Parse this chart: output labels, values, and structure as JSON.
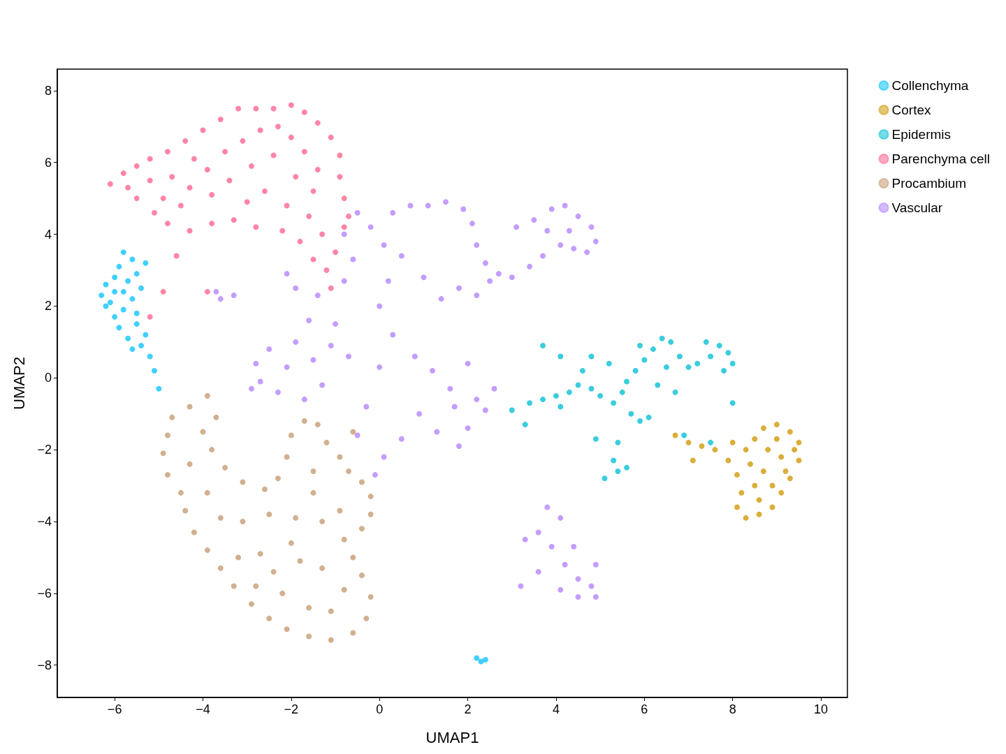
{
  "chart_data": {
    "type": "scatter",
    "xlabel": "UMAP1",
    "ylabel": "UMAP2",
    "xlim": [
      -7.3,
      10.6
    ],
    "ylim": [
      -8.9,
      8.6
    ],
    "xticks": [
      {
        "value": -6,
        "label": "−6"
      },
      {
        "value": -4,
        "label": "−4"
      },
      {
        "value": -2,
        "label": "−2"
      },
      0,
      2,
      4,
      6,
      8,
      10
    ],
    "yticks": [
      {
        "value": -8,
        "label": "−8"
      },
      {
        "value": -6,
        "label": "−6"
      },
      {
        "value": -4,
        "label": "−4"
      },
      {
        "value": -2,
        "label": "−2"
      },
      0,
      2,
      4,
      6,
      8
    ],
    "grid": false,
    "legend": "right",
    "marker": "circle",
    "series": [
      {
        "name": "Collenchyma",
        "color": "#1ec8ff",
        "x": [
          -6.3,
          -6.2,
          -6.1,
          -6,
          -5.9,
          -5.8,
          -5.6,
          -5.5,
          -5.4,
          -5.6,
          -5.8,
          -6,
          -5.9,
          -5.7,
          -5.6,
          -5.4,
          -5.3,
          -5.5,
          -5.2,
          -5.1,
          -5,
          -5.8,
          -6.2,
          -6,
          -5.5,
          -5.7,
          -5.3,
          2.3,
          2.4,
          2.2
        ],
        "values": [
          2.3,
          2.6,
          2.1,
          2.8,
          3.1,
          3.5,
          3.3,
          2.9,
          2.5,
          2.2,
          1.9,
          1.7,
          1.4,
          1.1,
          0.8,
          0.9,
          1.2,
          1.5,
          0.6,
          0.2,
          -0.3,
          2.4,
          2,
          2.4,
          1.8,
          2.7,
          3.2,
          -7.9,
          -7.85,
          -7.8
        ]
      },
      {
        "name": "Cortex",
        "color": "#d4a017",
        "x": [
          6.7,
          7,
          7.3,
          7.6,
          7.9,
          8.1,
          8.2,
          8.1,
          8.3,
          8.6,
          8.9,
          9.1,
          9.3,
          9.5,
          9.5,
          9.3,
          9,
          8.7,
          8.5,
          8.8,
          9.1,
          8.7,
          8.5,
          8.9,
          9.2,
          8.4,
          8.6,
          8,
          7.1,
          8.3,
          9.4,
          9
        ],
        "values": [
          -1.6,
          -1.8,
          -1.9,
          -2,
          -2.3,
          -2.7,
          -3.2,
          -3.6,
          -3.9,
          -3.8,
          -3.6,
          -3.2,
          -2.8,
          -2.3,
          -1.8,
          -1.5,
          -1.3,
          -1.4,
          -1.7,
          -2,
          -2.2,
          -2.6,
          -3,
          -3,
          -2.6,
          -2.4,
          -3.4,
          -1.8,
          -2.3,
          -2,
          -2,
          -1.7
        ]
      },
      {
        "name": "Epidermis",
        "color": "#18c4d8",
        "x": [
          3,
          3.4,
          3.7,
          4,
          4.3,
          4.1,
          4.5,
          4.8,
          5,
          5.3,
          5.5,
          5.7,
          5.9,
          6.1,
          5.6,
          5.8,
          6,
          6.2,
          6.4,
          6.6,
          6.8,
          7,
          7.2,
          7.5,
          7.7,
          7.9,
          8,
          7.8,
          6.5,
          6.3,
          5.4,
          5.3,
          5.4,
          5.1,
          5.6,
          4.9,
          4.6,
          4.8,
          3.7,
          4.1,
          5.2,
          6.9,
          7.5,
          3.3,
          5.9,
          7.4,
          8,
          6.7
        ],
        "values": [
          -0.9,
          -0.7,
          -0.6,
          -0.5,
          -0.4,
          -0.8,
          -0.2,
          -0.3,
          -0.5,
          -0.7,
          -0.4,
          -1,
          -1.2,
          -1.1,
          -0.1,
          0.2,
          0.5,
          0.8,
          1.1,
          1,
          0.6,
          0.3,
          0.4,
          0.6,
          0.9,
          0.7,
          0.4,
          0.2,
          0.3,
          -0.2,
          -1.8,
          -2.3,
          -2.6,
          -2.8,
          -2.5,
          -1.7,
          0.2,
          0.6,
          0.9,
          0.6,
          0.4,
          -1.6,
          -1.8,
          -1.3,
          0.9,
          1,
          -0.7,
          -0.4
        ]
      },
      {
        "name": "Parenchyma cell",
        "color": "#ff7096",
        "x": [
          -6.1,
          -5.8,
          -5.5,
          -5.2,
          -4.8,
          -4.4,
          -4,
          -3.6,
          -3.2,
          -2.8,
          -2.4,
          -2,
          -1.7,
          -1.4,
          -1.1,
          -0.9,
          -0.9,
          -0.8,
          -0.7,
          -0.8,
          -1,
          -1.2,
          -1.1,
          -1.5,
          -1.8,
          -2.2,
          -2.8,
          -3.3,
          -3.8,
          -4.3,
          -4.8,
          -5.1,
          -5.5,
          -5.7,
          -5.2,
          -4.7,
          -4.3,
          -3.9,
          -3.5,
          -3.1,
          -2.7,
          -2.3,
          -2,
          -1.7,
          -1.4,
          -1.5,
          -1.9,
          -2.4,
          -2.9,
          -3.4,
          -3.8,
          -4.5,
          -2.6,
          -2.1,
          -1.6,
          -3,
          -4.2,
          -4.9,
          -1.3,
          -4.6,
          -4.9,
          -3.9,
          -5.2
        ],
        "values": [
          5.4,
          5.7,
          5.9,
          6.1,
          6.3,
          6.6,
          6.9,
          7.2,
          7.5,
          7.5,
          7.5,
          7.6,
          7.4,
          7.1,
          6.7,
          6.2,
          5.6,
          5,
          4.5,
          4.2,
          3.5,
          3,
          2.5,
          3.3,
          3.8,
          4.1,
          4.2,
          4.4,
          4.3,
          4.1,
          4.3,
          4.6,
          5,
          5.3,
          5.5,
          5.6,
          5.3,
          5.8,
          6.3,
          6.6,
          6.9,
          7,
          6.7,
          6.3,
          5.8,
          5.2,
          5.6,
          6.2,
          5.9,
          5.5,
          5.1,
          4.8,
          5.2,
          4.8,
          4.5,
          4.9,
          6.1,
          5,
          4,
          3.4,
          2.4,
          2.4,
          1.7
        ]
      },
      {
        "name": "Procambium",
        "color": "#c9a27c",
        "x": [
          -3.9,
          -4.3,
          -4.7,
          -4.8,
          -4.9,
          -4.8,
          -4.5,
          -4.4,
          -4.2,
          -3.9,
          -3.6,
          -3.3,
          -2.9,
          -2.5,
          -2.1,
          -1.6,
          -1.1,
          -0.6,
          -0.3,
          -0.2,
          -0.4,
          -0.6,
          -0.8,
          -0.4,
          -0.2,
          -0.2,
          -0.4,
          -0.7,
          -0.9,
          -1.2,
          -1.4,
          -1.7,
          -2,
          -2.1,
          -2.3,
          -2.6,
          -3.1,
          -3.5,
          -3.8,
          -4,
          -4.3,
          -3.9,
          -3.6,
          -3.1,
          -2.5,
          -1.9,
          -1.3,
          -0.9,
          -1.5,
          -2,
          -2.7,
          -3.2,
          -2.8,
          -2.2,
          -1.6,
          -1.1,
          -0.8,
          -1.3,
          -1.8,
          -2.4,
          -1.5,
          -3.7,
          -0.6
        ],
        "values": [
          -0.5,
          -0.8,
          -1.1,
          -1.6,
          -2.1,
          -2.7,
          -3.2,
          -3.7,
          -4.3,
          -4.8,
          -5.3,
          -5.8,
          -6.3,
          -6.7,
          -7,
          -7.2,
          -7.3,
          -7.1,
          -6.7,
          -6.1,
          -5.5,
          -5,
          -4.5,
          -4.2,
          -3.8,
          -3.3,
          -2.9,
          -2.6,
          -2.2,
          -1.8,
          -1.3,
          -1.2,
          -1.6,
          -2.2,
          -2.8,
          -3.1,
          -2.9,
          -2.5,
          -2,
          -1.5,
          -2.4,
          -3.2,
          -3.9,
          -4,
          -3.8,
          -3.9,
          -4,
          -3.7,
          -3.2,
          -4.6,
          -4.9,
          -5,
          -5.8,
          -6,
          -6.4,
          -6.5,
          -5.9,
          -5.3,
          -5.1,
          -5.4,
          -2.6,
          -1.1,
          -1.5
        ]
      },
      {
        "name": "Vascular",
        "color": "#b98cff",
        "x": [
          -3.7,
          -3.6,
          -3.3,
          -2.8,
          -2.7,
          -2.5,
          -2.3,
          -2.1,
          -1.9,
          -1.7,
          -1.5,
          -1.3,
          -1.1,
          -1.6,
          -1.9,
          -2.1,
          -1.4,
          -1,
          -0.8,
          -0.6,
          -0.8,
          -0.5,
          -0.2,
          0.1,
          0.3,
          0.7,
          1.1,
          1.5,
          1.9,
          2.1,
          2.2,
          2.4,
          2.5,
          2.2,
          1.8,
          1.4,
          1,
          0.5,
          0.2,
          0,
          0.3,
          0.8,
          1.2,
          1.6,
          2,
          2.2,
          2.4,
          2,
          1.8,
          1.3,
          0.9,
          0.5,
          0.1,
          -0.1,
          -0.5,
          -0.3,
          0,
          -0.7,
          2.7,
          3,
          3.4,
          3.7,
          4.1,
          4.4,
          4.7,
          4.9,
          4.8,
          4.5,
          4.2,
          3.9,
          3.5,
          3.1,
          4.3,
          3.8,
          3.6,
          3.3,
          3.8,
          4.1,
          3.9,
          4.2,
          4.5,
          4.8,
          4.9,
          4.5,
          4.1,
          3.6,
          4.4,
          4.9,
          3.2,
          -2.9,
          2.6,
          1.7
        ],
        "values": [
          2.4,
          2.2,
          2.3,
          0.4,
          -0.1,
          0.8,
          -0.4,
          0.3,
          1,
          -0.6,
          0.5,
          -0.2,
          0.9,
          1.6,
          2.5,
          2.9,
          2.3,
          1.5,
          2.7,
          3.3,
          4,
          4.6,
          4.2,
          3.7,
          4.6,
          4.8,
          4.8,
          4.9,
          4.7,
          4.3,
          3.7,
          3.2,
          2.7,
          2.3,
          2.5,
          2.2,
          2.8,
          3.4,
          2.7,
          2,
          1.2,
          0.6,
          0.2,
          -0.3,
          0.4,
          -0.6,
          -0.9,
          -1.4,
          -1.9,
          -1.5,
          -1,
          -1.7,
          -2.2,
          -2.7,
          -1.6,
          -0.8,
          0.3,
          0.6,
          2.9,
          2.8,
          3.1,
          3.4,
          3.7,
          3.6,
          3.5,
          3.8,
          4.2,
          4.5,
          4.8,
          4.7,
          4.4,
          4.2,
          4.1,
          4.1,
          -4.3,
          -4.5,
          -3.6,
          -3.9,
          -4.7,
          -5.2,
          -5.6,
          -5.8,
          -6.1,
          -6.1,
          -5.9,
          -5.4,
          -4.7,
          -5.2,
          -5.8,
          -0.3,
          -0.3,
          -0.8
        ]
      }
    ]
  }
}
